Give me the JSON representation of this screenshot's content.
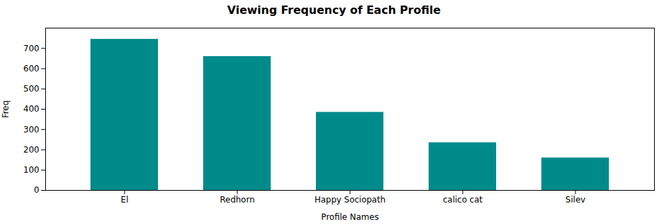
{
  "chart_data": {
    "type": "bar",
    "title": "Viewing Frequency of Each Profile",
    "xlabel": "Profile Names",
    "ylabel": "Freq",
    "categories": [
      "El",
      "Redhorn",
      "Happy Sociopath",
      "calico cat",
      "Silev"
    ],
    "values": [
      745,
      660,
      385,
      235,
      160
    ],
    "color": "#008B8B",
    "ylim": [
      0,
      800
    ],
    "yticks": [
      0,
      100,
      200,
      300,
      400,
      500,
      600,
      700
    ],
    "grid": false
  }
}
